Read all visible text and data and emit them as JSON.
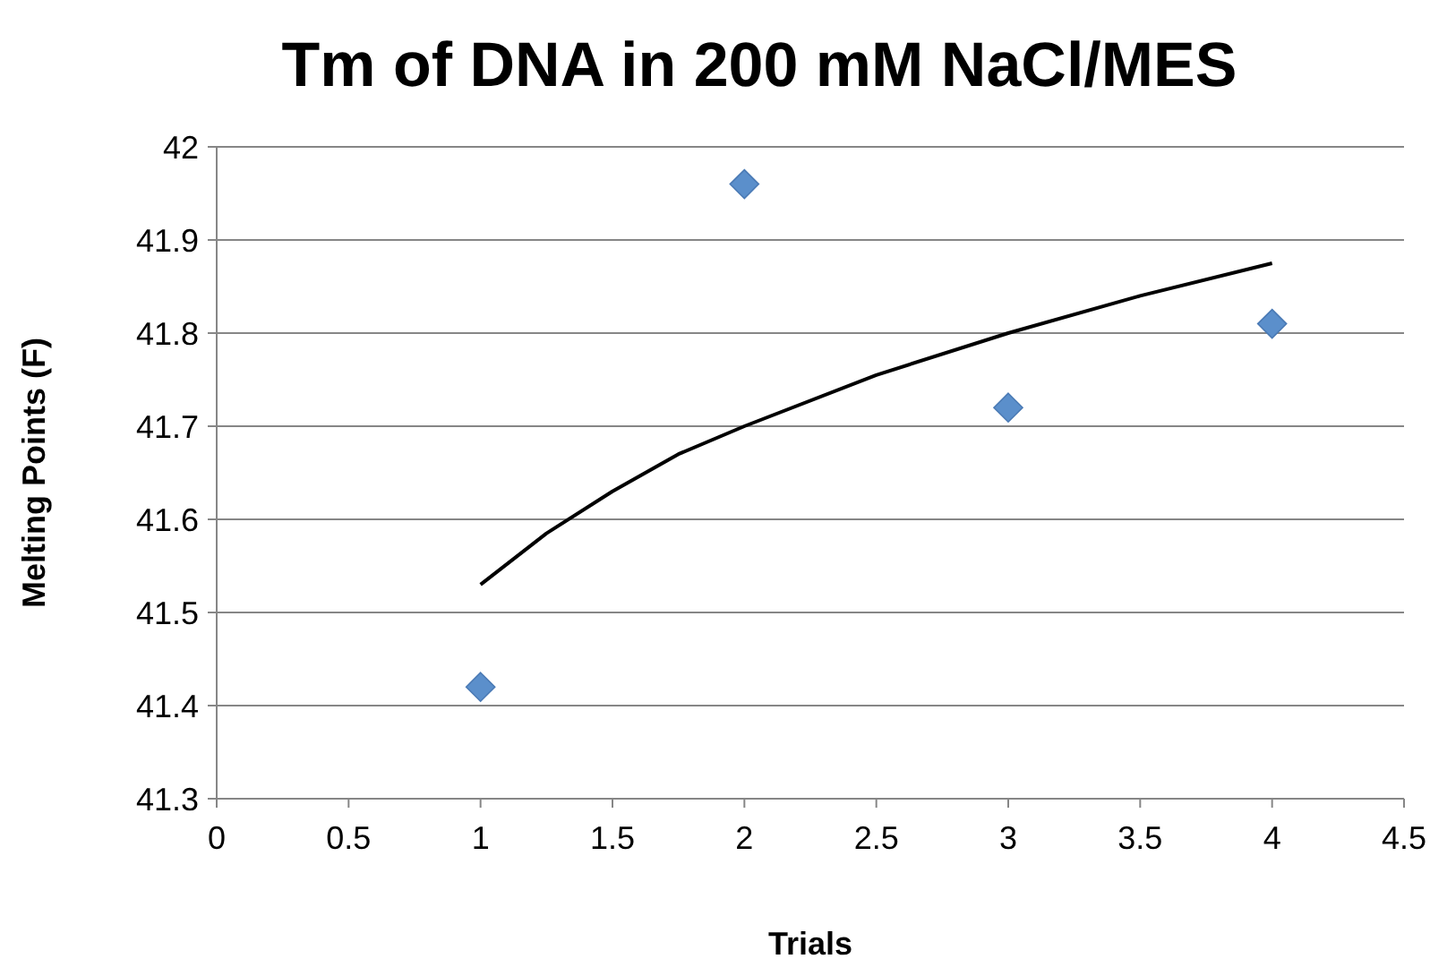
{
  "chart_data": {
    "type": "scatter",
    "title": "Tm of DNA in 200 mM NaCl/MES",
    "xlabel": "Trials",
    "ylabel": "Melting Points (F)",
    "x": [
      1,
      2,
      3,
      4
    ],
    "series": [
      {
        "color": "#5b8fcb",
        "values": [
          41.42,
          41.96,
          41.72,
          41.81
        ],
        "marker": "diamond"
      },
      {
        "type": "line",
        "color": "#000000",
        "x": [
          1,
          1.25,
          1.5,
          1.75,
          2,
          2.5,
          3,
          3.5,
          4
        ],
        "values": [
          41.53,
          41.585,
          41.63,
          41.67,
          41.7,
          41.755,
          41.8,
          41.84,
          41.875
        ],
        "marker": "none",
        "line_style": "solid"
      }
    ],
    "xlim": [
      0,
      4.5
    ],
    "xticks": [
      0,
      0.5,
      1,
      1.5,
      2,
      2.5,
      3,
      3.5,
      4,
      4.5
    ],
    "ylim": [
      41.3,
      42
    ],
    "yticks": [
      41.3,
      41.4,
      41.5,
      41.6,
      41.7,
      41.8,
      41.9,
      42
    ],
    "grid": "y"
  }
}
